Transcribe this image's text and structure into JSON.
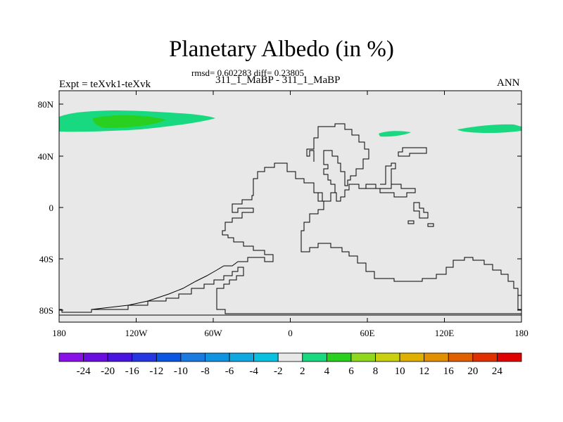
{
  "header": {
    "title": "Planetary Albedo (in %)",
    "stats": "rmsd= 0.602283 diff= 0.23805",
    "subtitle": "311_1_MaBP - 311_1_MaBP",
    "expt": "Expt = teXvk1-teXvk",
    "season": "ANN"
  },
  "map": {
    "lon_ticks": [
      "180",
      "120W",
      "60W",
      "0",
      "60E",
      "120E",
      "180"
    ],
    "lat_ticks": [
      "80N",
      "40N",
      "0",
      "40S",
      "80S"
    ],
    "background_color": "#e8e8e8"
  },
  "colorbar": {
    "labels": [
      "-24",
      "-20",
      "-16",
      "-12",
      "-10",
      "-8",
      "-6",
      "-4",
      "-2",
      "2",
      "4",
      "6",
      "8",
      "10",
      "12",
      "16",
      "20",
      "24"
    ],
    "colors": [
      "#8a10e8",
      "#6a0ee0",
      "#4a14e0",
      "#2636e0",
      "#0a56e0",
      "#1a7ae0",
      "#1094e0",
      "#10a8e0",
      "#08c0e0",
      "#e8e8e8",
      "#18d880",
      "#2ad020",
      "#90d820",
      "#c8d010",
      "#e0b000",
      "#e09000",
      "#e06000",
      "#e03000",
      "#e00000"
    ]
  }
}
